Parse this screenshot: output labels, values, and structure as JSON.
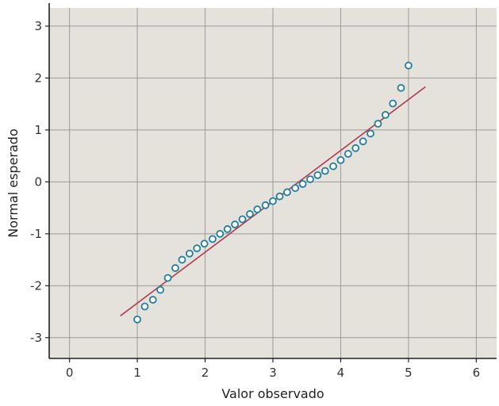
{
  "chart_data": {
    "type": "scatter",
    "title": "",
    "xlabel": "Valor observado",
    "ylabel": "Normal esperado",
    "xlim": [
      -0.3,
      6.3
    ],
    "ylim": [
      -3.4,
      3.35
    ],
    "x_ticks": [
      0,
      1,
      2,
      3,
      4,
      5,
      6
    ],
    "y_ticks": [
      -3,
      -2,
      -1,
      0,
      1,
      2,
      3
    ],
    "x_tick_labels": [
      "0",
      "1",
      "2",
      "3",
      "4",
      "5",
      "6"
    ],
    "y_tick_labels": [
      "-3",
      "-2",
      "-1",
      "0",
      "1",
      "2",
      "3"
    ],
    "grid": true,
    "points": {
      "x": [
        1.0,
        1.11,
        1.23,
        1.34,
        1.45,
        1.56,
        1.66,
        1.77,
        1.88,
        1.99,
        2.11,
        2.22,
        2.33,
        2.44,
        2.55,
        2.66,
        2.77,
        2.89,
        3.0,
        3.1,
        3.21,
        3.33,
        3.44,
        3.55,
        3.66,
        3.77,
        3.89,
        4.0,
        4.11,
        4.22,
        4.33,
        4.44,
        4.55,
        4.66,
        4.77,
        4.89,
        5.0
      ],
      "y": [
        -2.65,
        -2.4,
        -2.27,
        -2.08,
        -1.85,
        -1.66,
        -1.5,
        -1.38,
        -1.28,
        -1.19,
        -1.1,
        -1.0,
        -0.91,
        -0.82,
        -0.72,
        -0.62,
        -0.53,
        -0.45,
        -0.37,
        -0.28,
        -0.2,
        -0.12,
        -0.04,
        0.05,
        0.13,
        0.21,
        0.3,
        0.42,
        0.54,
        0.65,
        0.78,
        0.93,
        1.12,
        1.29,
        1.51,
        1.81,
        2.24
      ],
      "marker_color": "#1e7fa0",
      "marker_fill": "#ffffff"
    },
    "fit_line": {
      "x": [
        0.75,
        5.25
      ],
      "y": [
        -2.58,
        1.83
      ],
      "color": "#b03a4e"
    },
    "colors": {
      "plot_background": "#e5e2dc",
      "grid": "#9a9a9a",
      "axis": "#222222"
    }
  }
}
